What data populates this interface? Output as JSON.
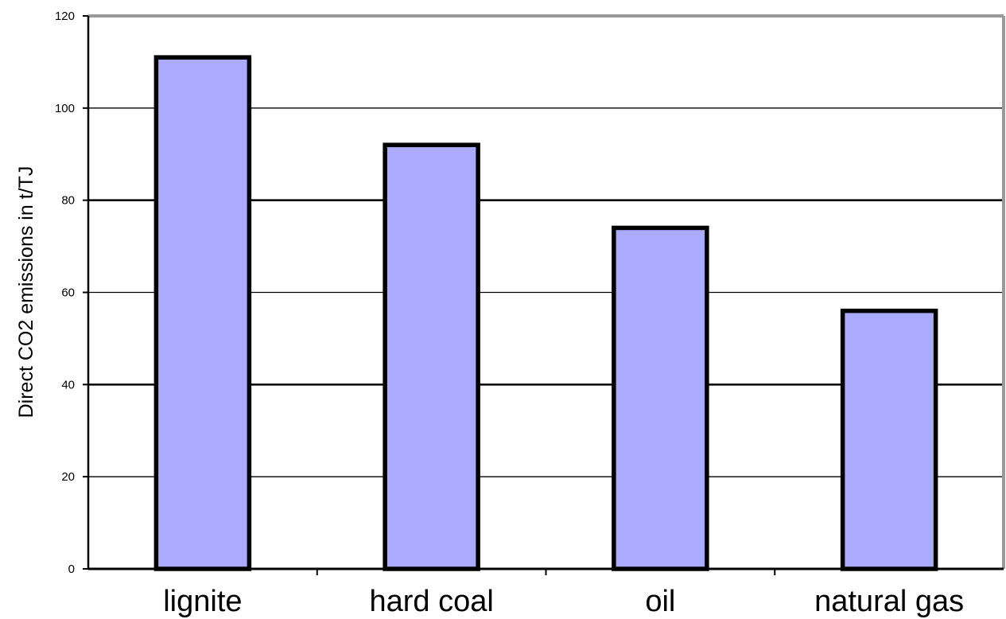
{
  "chart_data": {
    "type": "bar",
    "categories": [
      "lignite",
      "hard coal",
      "oil",
      "natural gas"
    ],
    "values": [
      111,
      92,
      74,
      56
    ],
    "title": "",
    "xlabel": "",
    "ylabel": "Direct CO2 emissions in t/TJ",
    "ylim": [
      0,
      120
    ],
    "yticks": [
      0,
      20,
      40,
      60,
      80,
      100,
      120
    ],
    "grid": true,
    "legend": "none",
    "colors": {
      "bar_fill": "#aaaaff",
      "bar_stroke": "#000000",
      "gridline": "#000000",
      "frame_top_right": "#999999"
    }
  }
}
